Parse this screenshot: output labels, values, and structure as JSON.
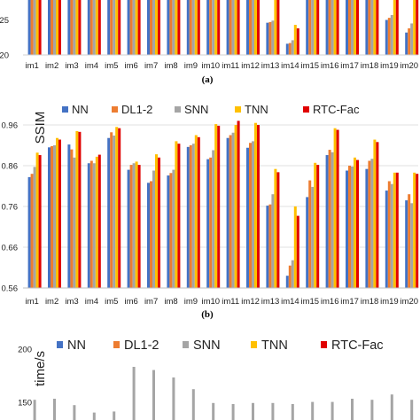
{
  "chart_data": [
    {
      "type": "bar",
      "caption": "(a)",
      "categories": [
        "im1",
        "im2",
        "im3",
        "im4",
        "im5",
        "im6",
        "im7",
        "im8",
        "im9",
        "im10",
        "im11",
        "im12",
        "im13",
        "im14",
        "im15",
        "im16",
        "im17",
        "im18",
        "im19",
        "im20"
      ],
      "y_ticks": [
        "25",
        "20"
      ],
      "ylim": [
        20,
        28
      ],
      "colors": [
        "#4472C4",
        "#ED7D31",
        "#A5A5A5",
        "#FFC000",
        "#E00000"
      ],
      "series": [
        {
          "values": [
            28,
            28,
            28,
            28,
            28,
            28,
            28,
            28,
            28,
            28,
            28,
            28,
            24.6,
            21.6,
            28,
            28,
            28,
            28,
            25,
            23.2
          ]
        },
        {
          "values": [
            28,
            28,
            28,
            28,
            28,
            28,
            28,
            28,
            28,
            28,
            28,
            28,
            24.7,
            21.7,
            28,
            28,
            28,
            28,
            25.3,
            23.8
          ]
        },
        {
          "values": [
            28,
            28,
            28,
            28,
            28,
            28,
            28,
            28,
            28,
            28,
            28,
            28,
            24.9,
            22.1,
            28,
            28,
            28,
            28,
            25.7,
            24.5
          ]
        },
        {
          "values": [
            28,
            28,
            28,
            28,
            28,
            28,
            28,
            28,
            28,
            28,
            28,
            28,
            28,
            24.3,
            28,
            28,
            28,
            28,
            28,
            28
          ]
        },
        {
          "values": [
            28,
            28,
            28,
            28,
            28,
            28,
            28,
            28,
            28,
            28,
            28,
            28,
            28,
            23.8,
            28,
            28,
            28,
            28,
            28,
            28
          ]
        }
      ]
    },
    {
      "type": "bar",
      "caption": "(b)",
      "ylabel": "SSIM",
      "categories": [
        "im1",
        "im2",
        "im3",
        "im4",
        "im5",
        "im6",
        "im7",
        "im8",
        "im9",
        "im10",
        "im11",
        "im12",
        "im13",
        "im14",
        "im15",
        "im16",
        "im17",
        "im18",
        "im19",
        "im20"
      ],
      "y_ticks": [
        "0.96",
        "0.86",
        "0.76",
        "0.66",
        "0.56"
      ],
      "ylim": [
        0.56,
        0.99
      ],
      "legend": [
        "NN",
        "DL1-2",
        "SNN",
        "TNN",
        "RTC-Fac"
      ],
      "colors": [
        "#4472C4",
        "#ED7D31",
        "#A5A5A5",
        "#FFC000",
        "#E00000"
      ],
      "series": [
        {
          "name": "NN",
          "values": [
            0.832,
            0.905,
            0.912,
            0.866,
            0.928,
            0.85,
            0.818,
            0.836,
            0.906,
            0.876,
            0.928,
            0.904,
            0.762,
            0.59,
            0.783,
            0.886,
            0.848,
            0.852,
            0.799,
            0.775
          ]
        },
        {
          "name": "DL1-2",
          "values": [
            0.84,
            0.908,
            0.9,
            0.872,
            0.942,
            0.862,
            0.822,
            0.842,
            0.91,
            0.88,
            0.935,
            0.916,
            0.765,
            0.615,
            0.824,
            0.899,
            0.86,
            0.872,
            0.822,
            0.79
          ]
        },
        {
          "name": "SNN",
          "values": [
            0.857,
            0.91,
            0.88,
            0.866,
            0.934,
            0.866,
            0.848,
            0.85,
            0.914,
            0.898,
            0.941,
            0.92,
            0.79,
            0.628,
            0.808,
            0.893,
            0.858,
            0.877,
            0.815,
            0.768
          ]
        },
        {
          "name": "TNN",
          "values": [
            0.892,
            0.928,
            0.945,
            0.882,
            0.955,
            0.87,
            0.888,
            0.92,
            0.935,
            0.962,
            0.96,
            0.965,
            0.852,
            0.76,
            0.867,
            0.952,
            0.88,
            0.924,
            0.843,
            0.843
          ]
        },
        {
          "name": "RTC-Fac",
          "values": [
            0.886,
            0.924,
            0.943,
            0.887,
            0.952,
            0.862,
            0.88,
            0.914,
            0.93,
            0.958,
            0.97,
            0.96,
            0.844,
            0.737,
            0.862,
            0.948,
            0.874,
            0.918,
            0.843,
            0.84
          ]
        }
      ]
    },
    {
      "type": "bar",
      "ylabel": "time/s",
      "categories": [
        "im1",
        "im2",
        "im3",
        "im4",
        "im5",
        "im6",
        "im7",
        "im8",
        "im9",
        "im10",
        "im11",
        "im12",
        "im13",
        "im14",
        "im15",
        "im16",
        "im17",
        "im18",
        "im19",
        "im20"
      ],
      "y_ticks": [
        "200",
        "150"
      ],
      "ylim": [
        133,
        205
      ],
      "legend": [
        "NN",
        "DL1-2",
        "SNN",
        "TNN",
        "RTC-Fac"
      ],
      "colors": [
        "#4472C4",
        "#ED7D31",
        "#A5A5A5",
        "#FFC000",
        "#E00000"
      ],
      "series": [
        {
          "name": "SNN",
          "values": [
            152,
            153,
            147,
            140,
            141,
            183,
            180,
            173,
            162,
            149,
            148,
            149,
            149,
            148,
            150,
            150,
            153,
            152,
            157,
            152
          ]
        }
      ]
    }
  ]
}
